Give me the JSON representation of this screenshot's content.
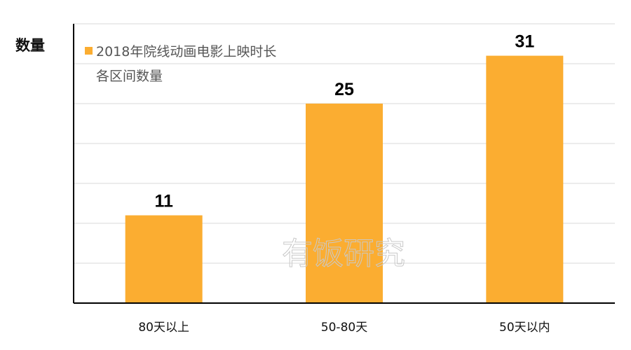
{
  "chart_data": {
    "type": "bar",
    "ylabel": "数量",
    "xlabel": "",
    "categories": [
      "80天以上",
      "50-80天",
      "50天以内"
    ],
    "series": [
      {
        "name_lines": [
          "2018年院线动画电影上映时长",
          "各区间数量"
        ],
        "values": [
          11,
          25,
          31
        ],
        "color": "#FBAD31"
      }
    ],
    "ylim": [
      0,
      35
    ],
    "grid": true,
    "legend_position": "top-left",
    "data_labels": [
      "11",
      "25",
      "31"
    ]
  },
  "watermark": "有饭研究",
  "colors": {
    "bar": "#FBAD31",
    "gridline": "#d9d9d9",
    "axis": "#000000"
  }
}
